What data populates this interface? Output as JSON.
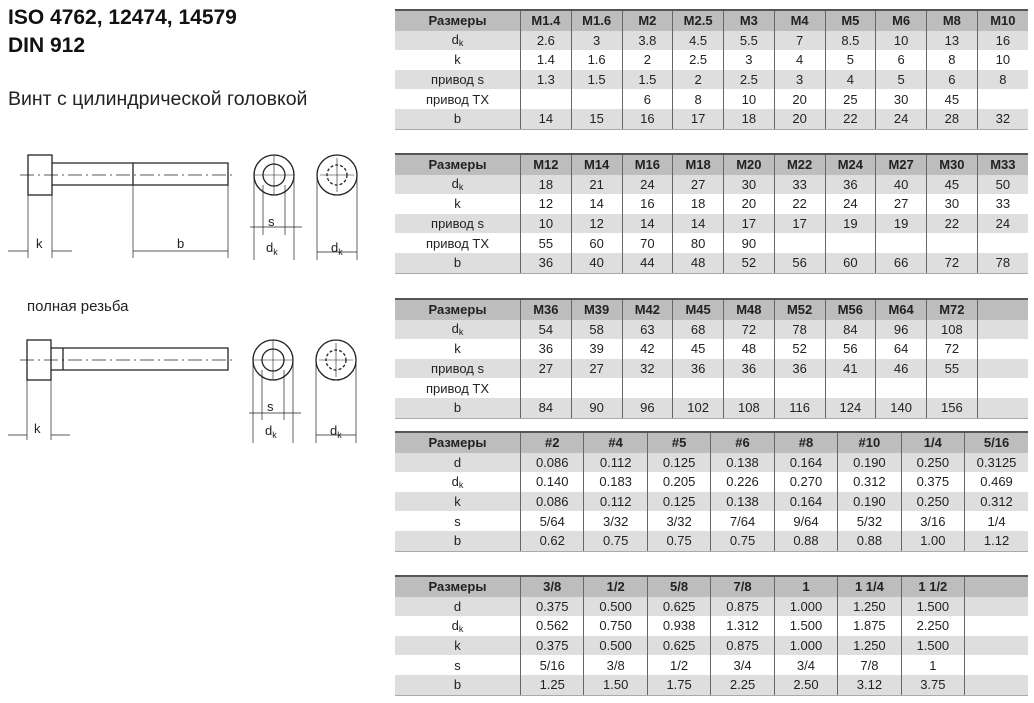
{
  "header": {
    "title_line1": "ISO 4762, 12474, 14579",
    "title_line2": "DIN 912",
    "subtitle": "Винт с цилиндрической головкой",
    "full_thread_label": "полная резьба"
  },
  "drawing_labels": {
    "k": "k",
    "b": "b",
    "s": "s",
    "dk": "d",
    "dk_sub": "k"
  },
  "colors": {
    "header_bg": "#bdbdbd",
    "shade_bg": "#dedede"
  },
  "tables": [
    {
      "headers": [
        "Размеры",
        "M1.4",
        "M1.6",
        "M2",
        "M2.5",
        "M3",
        "M4",
        "M5",
        "M6",
        "M8",
        "M10"
      ],
      "rows": [
        {
          "label": "d",
          "sub": "k",
          "values": [
            "2.6",
            "3",
            "3.8",
            "4.5",
            "5.5",
            "7",
            "8.5",
            "10",
            "13",
            "16"
          ]
        },
        {
          "label": "k",
          "values": [
            "1.4",
            "1.6",
            "2",
            "2.5",
            "3",
            "4",
            "5",
            "6",
            "8",
            "10"
          ]
        },
        {
          "label": "привод s",
          "values": [
            "1.3",
            "1.5",
            "1.5",
            "2",
            "2.5",
            "3",
            "4",
            "5",
            "6",
            "8"
          ]
        },
        {
          "label": "привод TX",
          "values": [
            "",
            "",
            "6",
            "8",
            "10",
            "20",
            "25",
            "30",
            "45",
            ""
          ]
        },
        {
          "label": "b",
          "values": [
            "14",
            "15",
            "16",
            "17",
            "18",
            "20",
            "22",
            "24",
            "28",
            "32"
          ]
        }
      ]
    },
    {
      "headers": [
        "Размеры",
        "M12",
        "M14",
        "M16",
        "M18",
        "M20",
        "M22",
        "M24",
        "M27",
        "M30",
        "M33"
      ],
      "rows": [
        {
          "label": "d",
          "sub": "k",
          "values": [
            "18",
            "21",
            "24",
            "27",
            "30",
            "33",
            "36",
            "40",
            "45",
            "50"
          ]
        },
        {
          "label": "k",
          "values": [
            "12",
            "14",
            "16",
            "18",
            "20",
            "22",
            "24",
            "27",
            "30",
            "33"
          ]
        },
        {
          "label": "привод s",
          "values": [
            "10",
            "12",
            "14",
            "14",
            "17",
            "17",
            "19",
            "19",
            "22",
            "24"
          ]
        },
        {
          "label": "привод TX",
          "values": [
            "55",
            "60",
            "70",
            "80",
            "90",
            "",
            "",
            "",
            "",
            ""
          ]
        },
        {
          "label": "b",
          "values": [
            "36",
            "40",
            "44",
            "48",
            "52",
            "56",
            "60",
            "66",
            "72",
            "78"
          ]
        }
      ]
    },
    {
      "headers": [
        "Размеры",
        "M36",
        "M39",
        "M42",
        "M45",
        "M48",
        "M52",
        "M56",
        "M64",
        "M72",
        ""
      ],
      "rows": [
        {
          "label": "d",
          "sub": "k",
          "values": [
            "54",
            "58",
            "63",
            "68",
            "72",
            "78",
            "84",
            "96",
            "108",
            ""
          ]
        },
        {
          "label": "k",
          "values": [
            "36",
            "39",
            "42",
            "45",
            "48",
            "52",
            "56",
            "64",
            "72",
            ""
          ]
        },
        {
          "label": "привод s",
          "values": [
            "27",
            "27",
            "32",
            "36",
            "36",
            "36",
            "41",
            "46",
            "55",
            ""
          ]
        },
        {
          "label": "привод TX",
          "values": [
            "",
            "",
            "",
            "",
            "",
            "",
            "",
            "",
            "",
            ""
          ]
        },
        {
          "label": "b",
          "values": [
            "84",
            "90",
            "96",
            "102",
            "108",
            "116",
            "124",
            "140",
            "156",
            ""
          ]
        }
      ]
    },
    {
      "headers": [
        "Размеры",
        "#2",
        "#4",
        "#5",
        "#6",
        "#8",
        "#10",
        "1/4",
        "5/16"
      ],
      "rows": [
        {
          "label": "d",
          "values": [
            "0.086",
            "0.112",
            "0.125",
            "0.138",
            "0.164",
            "0.190",
            "0.250",
            "0.3125"
          ]
        },
        {
          "label": "d",
          "sub": "k",
          "values": [
            "0.140",
            "0.183",
            "0.205",
            "0.226",
            "0.270",
            "0.312",
            "0.375",
            "0.469"
          ]
        },
        {
          "label": "k",
          "values": [
            "0.086",
            "0.112",
            "0.125",
            "0.138",
            "0.164",
            "0.190",
            "0.250",
            "0.312"
          ]
        },
        {
          "label": "s",
          "values": [
            "5/64",
            "3/32",
            "3/32",
            "7/64",
            "9/64",
            "5/32",
            "3/16",
            "1/4"
          ]
        },
        {
          "label": "b",
          "values": [
            "0.62",
            "0.75",
            "0.75",
            "0.75",
            "0.88",
            "0.88",
            "1.00",
            "1.12"
          ]
        }
      ]
    },
    {
      "headers": [
        "Размеры",
        "3/8",
        "1/2",
        "5/8",
        "7/8",
        "1",
        "1 1/4",
        "1 1/2",
        ""
      ],
      "rows": [
        {
          "label": "d",
          "values": [
            "0.375",
            "0.500",
            "0.625",
            "0.875",
            "1.000",
            "1.250",
            "1.500",
            ""
          ]
        },
        {
          "label": "d",
          "sub": "k",
          "values": [
            "0.562",
            "0.750",
            "0.938",
            "1.312",
            "1.500",
            "1.875",
            "2.250",
            ""
          ]
        },
        {
          "label": "k",
          "values": [
            "0.375",
            "0.500",
            "0.625",
            "0.875",
            "1.000",
            "1.250",
            "1.500",
            ""
          ]
        },
        {
          "label": "s",
          "values": [
            "5/16",
            "3/8",
            "1/2",
            "3/4",
            "3/4",
            "7/8",
            "1",
            ""
          ]
        },
        {
          "label": "b",
          "values": [
            "1.25",
            "1.50",
            "1.75",
            "2.25",
            "2.50",
            "3.12",
            "3.75",
            ""
          ]
        }
      ]
    }
  ]
}
